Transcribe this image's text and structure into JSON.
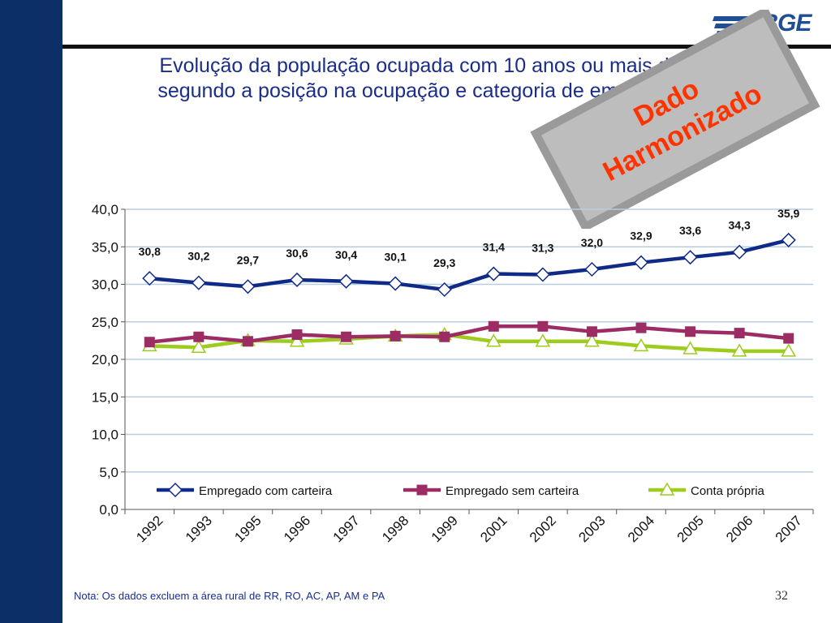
{
  "slide": {
    "title_line1": "Evolução da população ocupada com 10 anos ou mais de idade,",
    "title_line2": "segundo a posição na ocupação e categoria de emprego – Brasil",
    "logo_text": "IBGE",
    "stamp_line1": "Dado",
    "stamp_line2": "Harmonizado",
    "note": "Nota: Os dados excluem a área rural de RR, RO, AC, AP, AM e PA",
    "page_number": "32"
  },
  "colors": {
    "sidebar": "#0b2f66",
    "title": "#1a2d8c",
    "series1": "#102a87",
    "series2": "#9c2c64",
    "series3": "#9dcb1e",
    "gridline": "#b6cde6",
    "stamp_text": "#ff3300"
  },
  "chart_data": {
    "type": "line",
    "categories": [
      "1992",
      "1993",
      "1995",
      "1996",
      "1997",
      "1998",
      "1999",
      "2001",
      "2002",
      "2003",
      "2004",
      "2005",
      "2006",
      "2007"
    ],
    "ylim": [
      0,
      40
    ],
    "y_ticks": [
      "0,0",
      "5,0",
      "10,0",
      "15,0",
      "20,0",
      "25,0",
      "30,0",
      "35,0",
      "40,0"
    ],
    "grid": true,
    "legend_position": "bottom-inside",
    "series": [
      {
        "name": "Empregado com carteira",
        "values": [
          30.8,
          30.2,
          29.7,
          30.6,
          30.4,
          30.1,
          29.3,
          31.4,
          31.3,
          32.0,
          32.9,
          33.6,
          34.3,
          35.9
        ],
        "labels": [
          "30,8",
          "30,2",
          "29,7",
          "30,6",
          "30,4",
          "30,1",
          "29,3",
          "31,4",
          "31,3",
          "32,0",
          "32,9",
          "33,6",
          "34,3",
          "35,9"
        ],
        "marker": "diamond"
      },
      {
        "name": "Empregado sem carteira",
        "values": [
          22.3,
          23.0,
          22.4,
          23.3,
          23.0,
          23.1,
          23.0,
          24.4,
          24.4,
          23.7,
          24.2,
          23.7,
          23.5,
          22.8
        ],
        "marker": "square"
      },
      {
        "name": "Conta própria",
        "values": [
          21.8,
          21.6,
          22.5,
          22.4,
          22.7,
          23.1,
          23.3,
          22.4,
          22.4,
          22.4,
          21.8,
          21.4,
          21.1,
          21.1
        ],
        "marker": "triangle"
      }
    ]
  }
}
